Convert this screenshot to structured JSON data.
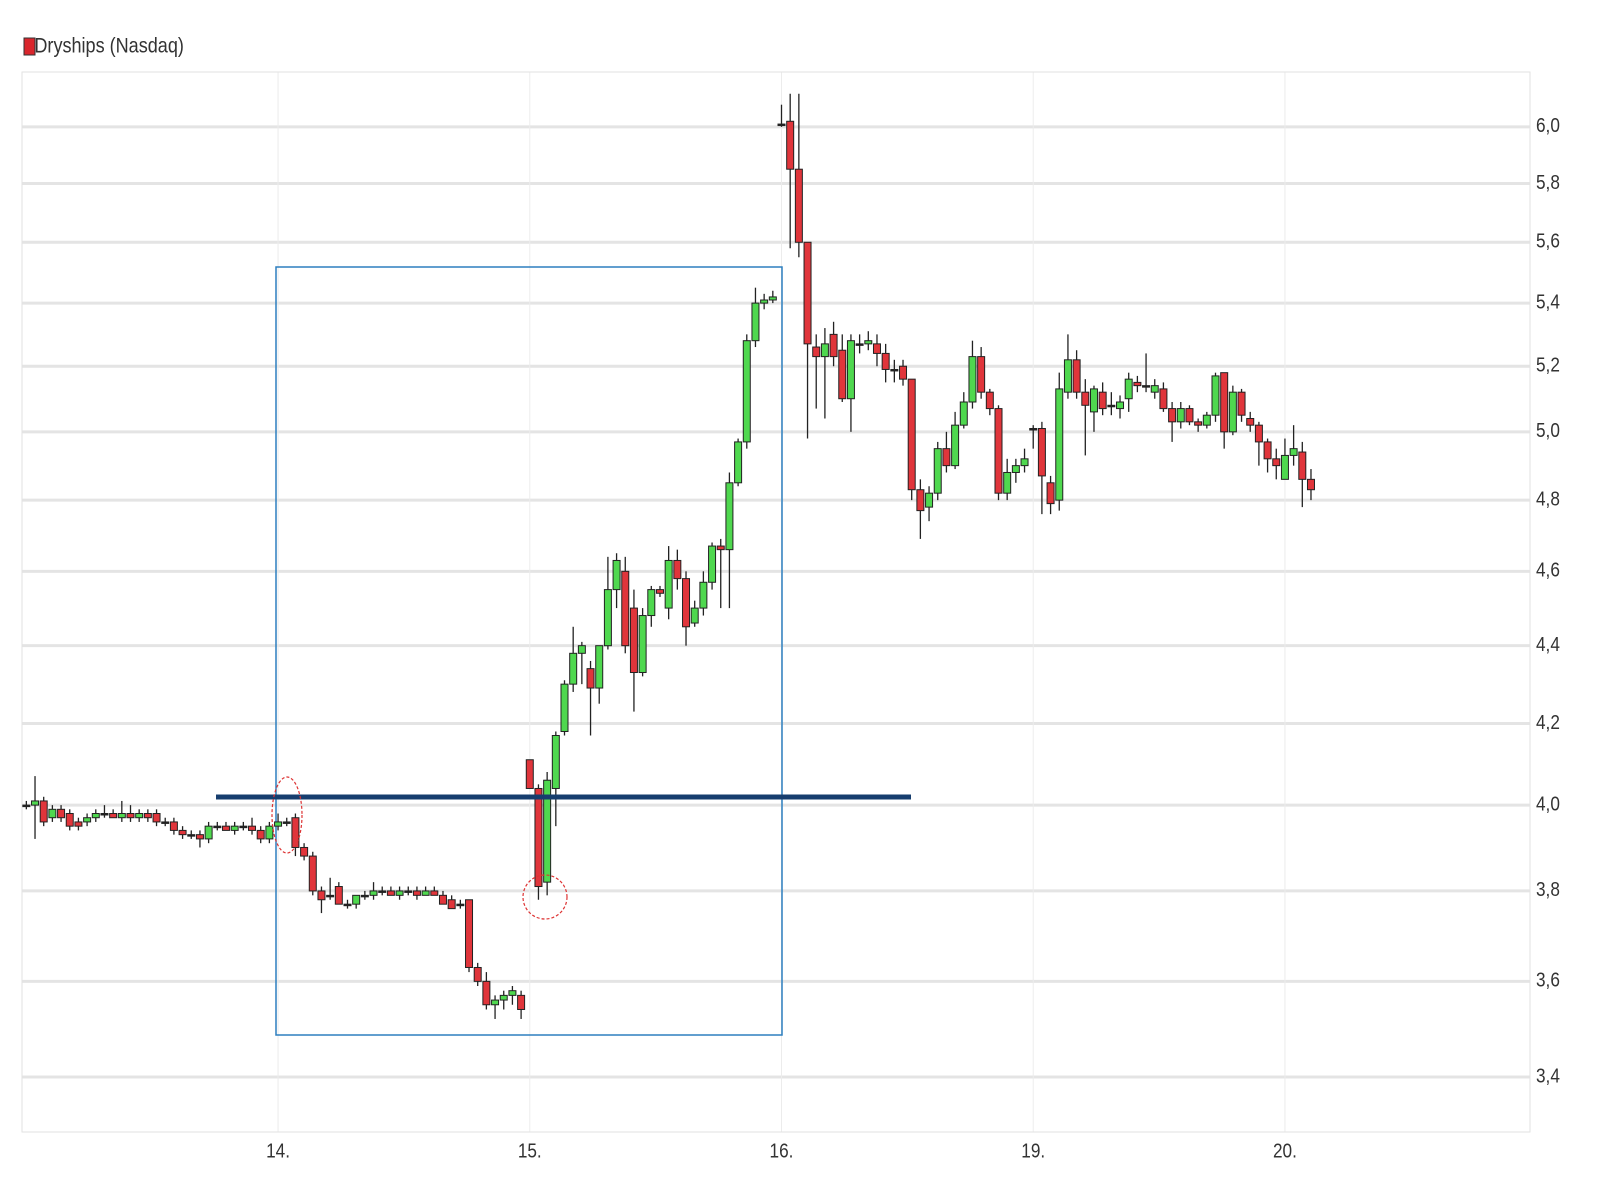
{
  "chart_data": {
    "type": "candlestick",
    "name": "Dryships (Nasdaq)",
    "color": "#d9262c",
    "up_color": "#4fd84f",
    "down_color": "#e0353b",
    "log_scale": true,
    "grid": true,
    "categories": [
      null,
      null,
      null,
      null,
      null,
      null,
      null,
      null,
      null,
      null,
      null,
      null,
      null,
      null,
      null,
      null,
      null,
      null,
      null,
      null,
      null,
      null,
      null,
      null,
      null,
      null,
      null,
      null,
      null,
      "14.",
      null,
      null,
      null,
      null,
      null,
      null,
      null,
      null,
      null,
      null,
      null,
      null,
      null,
      null,
      null,
      null,
      null,
      null,
      null,
      null,
      null,
      null,
      null,
      null,
      null,
      null,
      null,
      null,
      "15.",
      null,
      null,
      null,
      null,
      null,
      null,
      null,
      null,
      null,
      null,
      null,
      null,
      null,
      null,
      null,
      null,
      null,
      null,
      null,
      null,
      null,
      null,
      null,
      null,
      null,
      null,
      null,
      null,
      "16.",
      null,
      null,
      null,
      null,
      null,
      null,
      null,
      null,
      null,
      null,
      null,
      null,
      null,
      null,
      null,
      null,
      null,
      null,
      null,
      null,
      null,
      null,
      null,
      null,
      null,
      null,
      null,
      null,
      "19.",
      null,
      null,
      null,
      null,
      null,
      null,
      null,
      null,
      null,
      null,
      null,
      null,
      null,
      null,
      null,
      null,
      null,
      null,
      null,
      null,
      null,
      null,
      null,
      null,
      null,
      null,
      null,
      null,
      "20.",
      null,
      null,
      null
    ],
    "open": [
      4.0,
      4.0,
      4.01,
      3.97,
      3.99,
      3.98,
      3.96,
      3.96,
      3.97,
      3.98,
      3.98,
      3.97,
      3.98,
      3.97,
      3.98,
      3.98,
      3.96,
      3.96,
      3.94,
      3.93,
      3.93,
      3.92,
      3.95,
      3.95,
      3.94,
      3.95,
      3.95,
      3.94,
      3.92,
      3.95,
      3.96,
      3.97,
      3.9,
      3.88,
      3.8,
      3.79,
      3.81,
      3.77,
      3.77,
      3.79,
      3.79,
      3.8,
      3.8,
      3.79,
      3.8,
      3.8,
      3.79,
      3.8,
      3.79,
      3.78,
      3.77,
      3.78,
      3.63,
      3.6,
      3.55,
      3.56,
      3.57,
      3.57,
      4.11,
      4.04,
      3.82,
      4.04,
      4.18,
      4.3,
      4.38,
      4.34,
      4.29,
      4.4,
      4.55,
      4.6,
      4.5,
      4.33,
      4.48,
      4.55,
      4.5,
      4.63,
      4.58,
      4.46,
      4.5,
      4.57,
      4.67,
      4.66,
      4.85,
      4.97,
      5.28,
      5.4,
      5.41,
      6.01,
      6.02,
      5.85,
      5.6,
      5.26,
      5.23,
      5.3,
      5.25,
      5.1,
      5.27,
      5.27,
      5.27,
      5.24,
      5.19,
      5.2,
      5.16,
      4.83,
      4.78,
      4.82,
      4.95,
      4.9,
      5.02,
      5.09,
      5.23,
      5.12,
      5.07,
      4.82,
      4.88,
      4.9,
      5.01,
      5.01,
      4.85,
      4.8,
      5.12,
      5.22,
      5.12,
      5.06,
      5.12,
      5.08,
      5.07,
      5.1,
      5.15,
      5.14,
      5.12,
      5.13,
      5.07,
      5.03,
      5.07,
      5.03,
      5.02,
      5.05,
      5.18,
      5.0,
      5.12,
      5.04,
      5.02,
      4.97,
      4.92,
      4.86,
      4.93,
      4.94,
      4.86
    ],
    "high": [
      4.01,
      4.07,
      4.02,
      4.0,
      4.0,
      3.99,
      3.97,
      3.98,
      3.99,
      4.0,
      3.99,
      4.01,
      4.0,
      3.99,
      3.99,
      3.99,
      3.97,
      3.97,
      3.95,
      3.94,
      3.94,
      3.96,
      3.96,
      3.96,
      3.96,
      3.96,
      3.97,
      3.95,
      3.96,
      3.98,
      3.97,
      3.98,
      3.91,
      3.89,
      3.81,
      3.83,
      3.82,
      3.78,
      3.79,
      3.8,
      3.82,
      3.81,
      3.81,
      3.81,
      3.81,
      3.81,
      3.81,
      3.81,
      3.8,
      3.79,
      3.78,
      3.78,
      3.64,
      3.62,
      3.57,
      3.58,
      3.59,
      3.58,
      4.11,
      4.05,
      4.08,
      4.18,
      4.31,
      4.45,
      4.41,
      4.36,
      4.4,
      4.64,
      4.65,
      4.64,
      4.55,
      4.5,
      4.56,
      4.56,
      4.67,
      4.66,
      4.6,
      4.52,
      4.6,
      4.68,
      4.69,
      4.88,
      4.98,
      5.3,
      5.45,
      5.43,
      5.44,
      6.08,
      6.12,
      6.12,
      5.6,
      5.3,
      5.32,
      5.34,
      5.3,
      5.3,
      5.3,
      5.31,
      5.3,
      5.27,
      5.22,
      5.22,
      5.16,
      4.86,
      4.84,
      4.97,
      5.0,
      5.06,
      5.12,
      5.28,
      5.26,
      5.13,
      5.08,
      4.92,
      4.92,
      4.95,
      5.02,
      5.03,
      4.87,
      5.18,
      5.3,
      5.25,
      5.16,
      5.14,
      5.15,
      5.12,
      5.11,
      5.18,
      5.17,
      5.24,
      5.16,
      5.15,
      5.09,
      5.09,
      5.08,
      5.04,
      5.06,
      5.18,
      5.18,
      5.14,
      5.13,
      5.06,
      5.03,
      4.98,
      4.95,
      4.98,
      5.02,
      4.97,
      4.89
    ],
    "low": [
      3.99,
      3.92,
      3.95,
      3.96,
      3.96,
      3.94,
      3.94,
      3.95,
      3.96,
      3.97,
      3.97,
      3.96,
      3.96,
      3.96,
      3.96,
      3.95,
      3.95,
      3.93,
      3.92,
      3.92,
      3.9,
      3.91,
      3.94,
      3.94,
      3.93,
      3.94,
      3.93,
      3.91,
      3.91,
      3.94,
      3.95,
      3.88,
      3.87,
      3.79,
      3.75,
      3.78,
      3.77,
      3.76,
      3.76,
      3.78,
      3.78,
      3.79,
      3.79,
      3.78,
      3.79,
      3.78,
      3.79,
      3.79,
      3.77,
      3.76,
      3.76,
      3.62,
      3.59,
      3.54,
      3.52,
      3.54,
      3.55,
      3.52,
      4.04,
      3.78,
      3.79,
      3.95,
      4.17,
      4.28,
      4.3,
      4.17,
      4.25,
      4.39,
      4.5,
      4.38,
      4.23,
      4.32,
      4.45,
      4.53,
      4.47,
      4.55,
      4.4,
      4.45,
      4.48,
      4.55,
      4.5,
      4.5,
      4.84,
      4.95,
      5.26,
      5.38,
      5.4,
      6.0,
      5.58,
      5.55,
      4.98,
      5.07,
      5.04,
      5.2,
      5.09,
      5.0,
      5.24,
      5.25,
      5.2,
      5.15,
      5.15,
      5.14,
      4.8,
      4.69,
      4.74,
      4.8,
      4.88,
      4.89,
      5.01,
      5.07,
      5.1,
      5.05,
      4.8,
      4.8,
      4.85,
      4.88,
      4.95,
      4.76,
      4.76,
      4.77,
      5.1,
      5.1,
      4.93,
      5.0,
      5.05,
      5.05,
      5.04,
      5.06,
      5.12,
      5.12,
      5.1,
      5.06,
      4.97,
      5.01,
      5.02,
      5.0,
      5.01,
      5.03,
      4.95,
      4.99,
      5.03,
      5.0,
      4.9,
      4.88,
      4.86,
      4.86,
      4.9,
      4.78,
      4.8
    ],
    "close": [
      4.0,
      4.01,
      3.96,
      3.99,
      3.97,
      3.95,
      3.95,
      3.97,
      3.98,
      3.98,
      3.97,
      3.98,
      3.97,
      3.98,
      3.97,
      3.96,
      3.96,
      3.94,
      3.93,
      3.93,
      3.92,
      3.95,
      3.95,
      3.94,
      3.95,
      3.95,
      3.94,
      3.92,
      3.95,
      3.96,
      3.96,
      3.9,
      3.88,
      3.8,
      3.78,
      3.79,
      3.77,
      3.77,
      3.79,
      3.79,
      3.8,
      3.8,
      3.79,
      3.8,
      3.8,
      3.79,
      3.8,
      3.79,
      3.77,
      3.76,
      3.77,
      3.63,
      3.6,
      3.55,
      3.56,
      3.57,
      3.58,
      3.54,
      4.04,
      3.81,
      4.06,
      4.17,
      4.3,
      4.38,
      4.4,
      4.29,
      4.4,
      4.55,
      4.63,
      4.4,
      4.33,
      4.48,
      4.55,
      4.54,
      4.63,
      4.58,
      4.45,
      4.5,
      4.57,
      4.67,
      4.66,
      4.85,
      4.97,
      5.28,
      5.4,
      5.41,
      5.42,
      6.01,
      5.85,
      5.6,
      5.27,
      5.23,
      5.27,
      5.23,
      5.1,
      5.28,
      5.27,
      5.28,
      5.24,
      5.19,
      5.19,
      5.16,
      4.83,
      4.77,
      4.82,
      4.95,
      4.9,
      5.02,
      5.09,
      5.23,
      5.12,
      5.07,
      4.82,
      4.88,
      4.9,
      4.92,
      5.01,
      4.87,
      4.79,
      5.13,
      5.22,
      5.12,
      5.08,
      5.13,
      5.07,
      5.08,
      5.09,
      5.16,
      5.14,
      5.14,
      5.14,
      5.07,
      5.03,
      5.07,
      5.03,
      5.02,
      5.05,
      5.17,
      5.0,
      5.12,
      5.05,
      5.02,
      4.97,
      4.92,
      4.9,
      4.93,
      4.95,
      4.86,
      4.83
    ],
    "ylim": [
      3.29,
      6.2
    ],
    "yticks": [
      {
        "value": 3.4,
        "label": "3,4"
      },
      {
        "value": 3.6,
        "label": "3,6"
      },
      {
        "value": 3.8,
        "label": "3,8"
      },
      {
        "value": 4.0,
        "label": "4,0"
      },
      {
        "value": 4.2,
        "label": "4,2"
      },
      {
        "value": 4.4,
        "label": "4,4"
      },
      {
        "value": 4.6,
        "label": "4,6"
      },
      {
        "value": 4.8,
        "label": "4,8"
      },
      {
        "value": 5.0,
        "label": "5,0"
      },
      {
        "value": 5.2,
        "label": "5,2"
      },
      {
        "value": 5.4,
        "label": "5,4"
      },
      {
        "value": 5.6,
        "label": "5,6"
      },
      {
        "value": 5.8,
        "label": "5,8"
      },
      {
        "value": 6.0,
        "label": "6,0"
      }
    ]
  }
}
